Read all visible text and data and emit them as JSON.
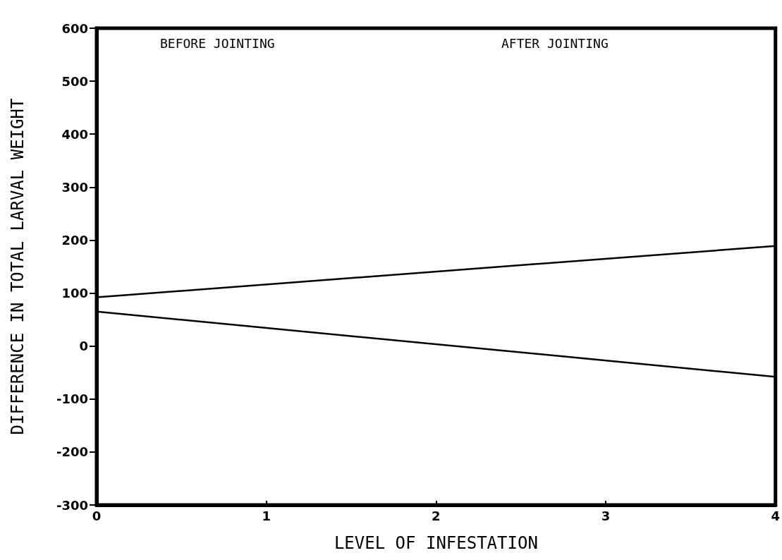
{
  "chart_data": {
    "type": "line",
    "xlabel": "LEVEL OF INFESTATION",
    "ylabel": "DIFFERENCE IN TOTAL LARVAL WEIGHT",
    "annotations": [
      "BEFORE JOINTING",
      "AFTER JOINTING"
    ],
    "x": [
      0,
      4
    ],
    "series": [
      {
        "color": "#000000",
        "values": [
          92,
          189
        ]
      },
      {
        "color": "#000000",
        "values": [
          65,
          -58
        ]
      }
    ],
    "xlim": [
      0,
      4
    ],
    "xticks": [
      0,
      1,
      2,
      3,
      4
    ],
    "ylim": [
      -300,
      600
    ],
    "yticks": [
      -300,
      -200,
      -100,
      0,
      100,
      200,
      300,
      400,
      500,
      600
    ],
    "grid": false,
    "marker": "none",
    "line_style": "solid"
  }
}
